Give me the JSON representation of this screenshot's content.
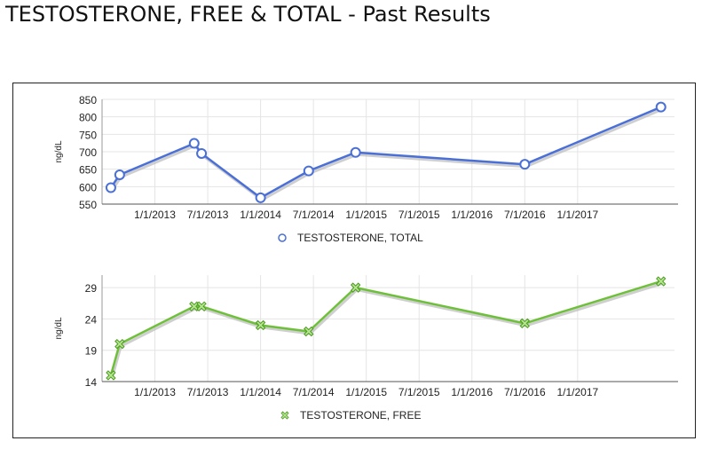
{
  "page": {
    "title": "TESTOSTERONE, FREE & TOTAL - Past Results"
  },
  "colors": {
    "total": "#4a6fd6",
    "free": "#6ec03a",
    "grid": "#e4e4e4",
    "shadow": "#bbbbbb"
  },
  "chart_data": [
    {
      "type": "line",
      "title": "",
      "xlabel": "",
      "ylabel": "ng/dL",
      "ylim": [
        550,
        850
      ],
      "yticks": [
        "550",
        "600",
        "650",
        "700",
        "750",
        "800",
        "850"
      ],
      "xticks": [
        "1/1/2013",
        "7/1/2013",
        "1/1/2014",
        "7/1/2014",
        "1/1/2015",
        "7/1/2015",
        "1/1/2016",
        "7/1/2016",
        "1/1/2017"
      ],
      "grid": true,
      "legend_position": "bottom-center",
      "marker": "circle-icon",
      "series": [
        {
          "name": "TESTOSTERONE, TOTAL",
          "x": [
            "2012-08-01",
            "2012-09-01",
            "2013-05-15",
            "2013-06-10",
            "2014-01-01",
            "2014-06-15",
            "2014-11-25",
            "2016-07-01",
            "2017-10-15"
          ],
          "y": [
            597,
            634,
            724,
            695,
            568,
            645,
            698,
            664,
            828
          ]
        }
      ]
    },
    {
      "type": "line",
      "title": "",
      "xlabel": "",
      "ylabel": "ng/dL",
      "ylim": [
        14,
        31
      ],
      "yticks": [
        "14",
        "19",
        "24",
        "29"
      ],
      "xticks": [
        "1/1/2013",
        "7/1/2013",
        "1/1/2014",
        "7/1/2014",
        "1/1/2015",
        "7/1/2015",
        "1/1/2016",
        "7/1/2016",
        "1/1/2017"
      ],
      "grid": true,
      "legend_position": "bottom-center",
      "marker": "x-marker-icon",
      "series": [
        {
          "name": "TESTOSTERONE, FREE",
          "x": [
            "2012-08-01",
            "2012-09-01",
            "2013-05-15",
            "2013-06-10",
            "2014-01-01",
            "2014-06-15",
            "2014-11-25",
            "2016-07-01",
            "2017-10-15"
          ],
          "y": [
            15,
            20,
            26,
            26,
            23,
            22,
            29,
            23.3,
            30
          ]
        }
      ]
    }
  ]
}
